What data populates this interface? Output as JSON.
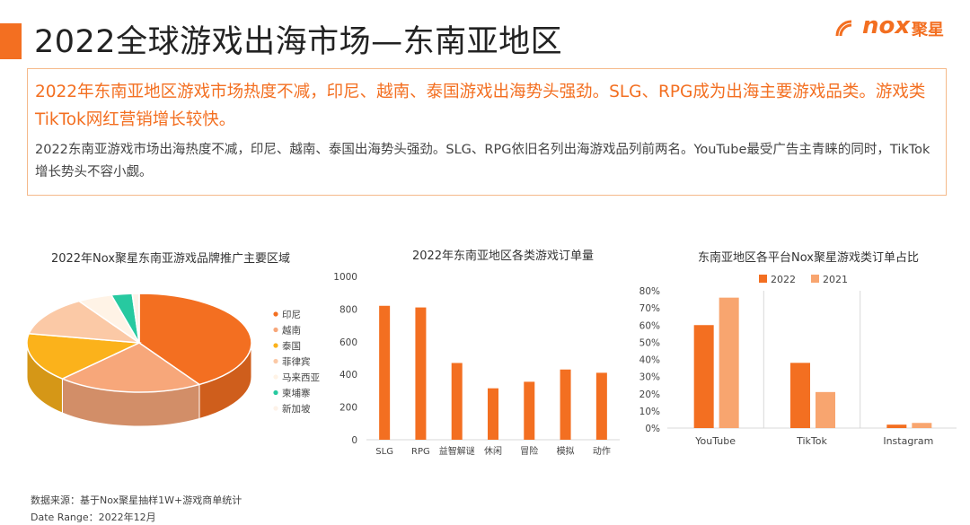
{
  "header": {
    "title": "2022全球游戏出海市场—东南亚地区",
    "logo_text": "nox",
    "logo_cn": "聚星"
  },
  "summary": {
    "headline": "2022年东南亚地区游戏市场热度不减，印尼、越南、泰国游戏出海势头强劲。SLG、RPG成为出海主要游戏品类。游戏类TikTok网红营销增长较快。",
    "detail": "2022东南亚游戏市场出海热度不减，印尼、越南、泰国出海势头强劲。SLG、RPG依旧名列出海游戏品列前两名。YouTube最受广告主青睐的同时，TikTok增长势头不容小觑。"
  },
  "footer": {
    "source": "数据来源：基于Nox聚星抽样1W+游戏商单统计",
    "date_range": "Date Range：2022年12月"
  },
  "colors": {
    "accent": "#f36f21",
    "印尼": "#f36f21",
    "越南": "#f7a77a",
    "泰国": "#fbb21b",
    "菲律宾": "#fbc9a6",
    "马来西亚": "#fff3e6",
    "柬埔寨": "#27c9a0",
    "新加坡": "#fdf2e8",
    "bar": "#f36f21",
    "s2022": "#f36f21",
    "s2021": "#f8a56f"
  },
  "chart_data": [
    {
      "type": "pie",
      "title": "2022年Nox聚星东南亚游戏品牌推广主要区域",
      "legend_position": "right",
      "categories": [
        "印尼",
        "越南",
        "泰国",
        "菲律宾",
        "马来西亚",
        "柬埔寨",
        "新加坡"
      ],
      "values": [
        41,
        21,
        16,
        13,
        5,
        3,
        1
      ]
    },
    {
      "type": "bar",
      "title": "2022年东南亚地区各类游戏订单量",
      "categories": [
        "SLG",
        "RPG",
        "益智解谜",
        "休闲",
        "冒险",
        "模拟",
        "动作"
      ],
      "values": [
        820,
        810,
        470,
        315,
        355,
        430,
        410
      ],
      "ylim": [
        0,
        1000
      ],
      "yticks": [
        "0",
        "200",
        "400",
        "600",
        "800",
        "1000"
      ],
      "grid": false
    },
    {
      "type": "bar",
      "title": "东南亚地区各平台Nox聚星游戏类订单占比",
      "categories": [
        "YouTube",
        "TikTok",
        "Instagram"
      ],
      "series": [
        {
          "name": "2022",
          "values": [
            60,
            38,
            2
          ]
        },
        {
          "name": "2021",
          "values": [
            76,
            21,
            3
          ]
        }
      ],
      "ylim": [
        0,
        80
      ],
      "yticks": [
        "0%",
        "10%",
        "20%",
        "30%",
        "40%",
        "50%",
        "60%",
        "70%",
        "80%"
      ],
      "legend_position": "top",
      "grid": false
    }
  ]
}
